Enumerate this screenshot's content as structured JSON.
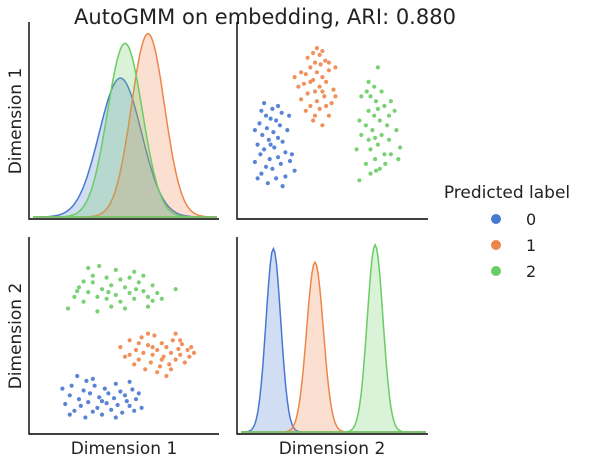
{
  "chart_data": {
    "type": "scatter",
    "title": "AutoGMM on embedding, ARI: 0.880",
    "variables": [
      "Dimension 1",
      "Dimension 2"
    ],
    "legend": {
      "title": "Predicted label",
      "placement": "right",
      "entries": [
        {
          "label": "0",
          "color": "#4878d0"
        },
        {
          "label": "1",
          "color": "#ee854a"
        },
        {
          "label": "2",
          "color": "#6acc64"
        }
      ]
    },
    "ranges": {
      "dim1": [
        -1.0,
        1.0
      ],
      "dim2": [
        -1.0,
        1.0
      ]
    },
    "kde": {
      "dim1": [
        {
          "label": "0",
          "mean": -0.05,
          "sd": 0.23,
          "peak": 0.72
        },
        {
          "label": "1",
          "mean": 0.25,
          "sd": 0.18,
          "peak": 0.95
        },
        {
          "label": "2",
          "mean": 0.0,
          "sd": 0.19,
          "peak": 0.9
        }
      ],
      "dim2": [
        {
          "label": "0",
          "mean": -0.65,
          "sd": 0.08,
          "peak": 0.95
        },
        {
          "label": "1",
          "mean": -0.2,
          "sd": 0.09,
          "peak": 0.88
        },
        {
          "label": "2",
          "mean": 0.45,
          "sd": 0.085,
          "peak": 0.97
        }
      ]
    },
    "series": [
      {
        "name": "0",
        "points": [
          [
            -0.65,
            -0.71
          ],
          [
            -0.6,
            -0.62
          ],
          [
            -0.58,
            -0.52
          ],
          [
            -0.55,
            -0.78
          ],
          [
            -0.6,
            -0.82
          ],
          [
            -0.52,
            -0.42
          ],
          [
            -0.5,
            -0.66
          ],
          [
            -0.48,
            -0.73
          ],
          [
            -0.45,
            -0.57
          ],
          [
            -0.43,
            -0.85
          ],
          [
            -0.42,
            -0.47
          ],
          [
            -0.4,
            -0.69
          ],
          [
            -0.38,
            -0.6
          ],
          [
            -0.35,
            -0.79
          ],
          [
            -0.33,
            -0.52
          ],
          [
            -0.3,
            -0.75
          ],
          [
            -0.28,
            -0.64
          ],
          [
            -0.25,
            -0.82
          ],
          [
            -0.22,
            -0.55
          ],
          [
            -0.2,
            -0.7
          ],
          [
            -0.18,
            -0.6
          ],
          [
            -0.15,
            -0.77
          ],
          [
            -0.12,
            -0.65
          ],
          [
            -0.1,
            -0.5
          ],
          [
            -0.08,
            -0.72
          ],
          [
            -0.05,
            -0.58
          ],
          [
            -0.03,
            -0.8
          ],
          [
            0.0,
            -0.62
          ],
          [
            0.02,
            -0.68
          ],
          [
            0.05,
            -0.73
          ],
          [
            0.08,
            -0.56
          ],
          [
            0.1,
            -0.78
          ],
          [
            0.12,
            -0.66
          ],
          [
            0.15,
            -0.6
          ],
          [
            0.18,
            -0.75
          ],
          [
            -0.68,
            -0.55
          ],
          [
            -0.35,
            -0.45
          ],
          [
            -0.1,
            -0.85
          ],
          [
            0.05,
            -0.48
          ],
          [
            -0.25,
            -0.68
          ]
        ]
      },
      {
        "name": "1",
        "points": [
          [
            -0.05,
            -0.12
          ],
          [
            0.0,
            -0.22
          ],
          [
            0.05,
            -0.05
          ],
          [
            0.1,
            -0.3
          ],
          [
            0.12,
            -0.15
          ],
          [
            0.15,
            -0.25
          ],
          [
            0.18,
            -0.02
          ],
          [
            0.2,
            -0.18
          ],
          [
            0.22,
            -0.35
          ],
          [
            0.25,
            -0.1
          ],
          [
            0.28,
            -0.28
          ],
          [
            0.3,
            -0.2
          ],
          [
            0.32,
            0.0
          ],
          [
            0.35,
            -0.15
          ],
          [
            0.38,
            -0.32
          ],
          [
            0.4,
            -0.08
          ],
          [
            0.42,
            -0.22
          ],
          [
            0.45,
            -0.12
          ],
          [
            0.48,
            -0.3
          ],
          [
            0.5,
            -0.18
          ],
          [
            0.52,
            -0.05
          ],
          [
            0.55,
            -0.25
          ],
          [
            0.58,
            -0.14
          ],
          [
            0.6,
            -0.2
          ],
          [
            0.62,
            -0.09
          ],
          [
            0.65,
            -0.28
          ],
          [
            0.68,
            -0.15
          ],
          [
            0.7,
            -0.22
          ],
          [
            0.72,
            -0.12
          ],
          [
            0.75,
            -0.18
          ],
          [
            0.25,
            0.02
          ],
          [
            0.35,
            -0.38
          ],
          [
            0.45,
            -0.42
          ],
          [
            0.15,
            -0.08
          ],
          [
            0.55,
            0.02
          ],
          [
            0.05,
            -0.2
          ],
          [
            0.3,
            -0.12
          ],
          [
            0.4,
            -0.25
          ],
          [
            0.5,
            -0.35
          ],
          [
            0.6,
            -0.05
          ]
        ]
      },
      {
        "name": "2",
        "points": [
          [
            -0.55,
            0.4
          ],
          [
            -0.5,
            0.5
          ],
          [
            -0.45,
            0.35
          ],
          [
            -0.4,
            0.45
          ],
          [
            -0.35,
            0.55
          ],
          [
            -0.3,
            0.4
          ],
          [
            -0.25,
            0.48
          ],
          [
            -0.2,
            0.38
          ],
          [
            -0.15,
            0.52
          ],
          [
            -0.1,
            0.42
          ],
          [
            -0.05,
            0.35
          ],
          [
            0.0,
            0.5
          ],
          [
            0.05,
            0.44
          ],
          [
            0.1,
            0.38
          ],
          [
            0.15,
            0.55
          ],
          [
            0.2,
            0.46
          ],
          [
            0.25,
            0.4
          ],
          [
            0.3,
            0.52
          ],
          [
            0.35,
            0.44
          ],
          [
            0.4,
            0.38
          ],
          [
            -0.4,
            0.7
          ],
          [
            -0.28,
            0.72
          ],
          [
            -0.1,
            0.68
          ],
          [
            0.1,
            0.66
          ],
          [
            -0.62,
            0.28
          ],
          [
            -0.3,
            0.25
          ],
          [
            0.0,
            0.28
          ],
          [
            0.25,
            0.3
          ],
          [
            -0.15,
            0.3
          ],
          [
            0.55,
            0.48
          ],
          [
            -0.2,
            0.6
          ],
          [
            0.05,
            0.6
          ],
          [
            -0.35,
            0.62
          ],
          [
            -0.05,
            0.58
          ],
          [
            -0.52,
            0.46
          ],
          [
            0.12,
            0.48
          ],
          [
            -0.18,
            0.45
          ],
          [
            0.3,
            0.36
          ],
          [
            -0.45,
            0.56
          ],
          [
            0.2,
            0.62
          ]
        ]
      }
    ]
  }
}
